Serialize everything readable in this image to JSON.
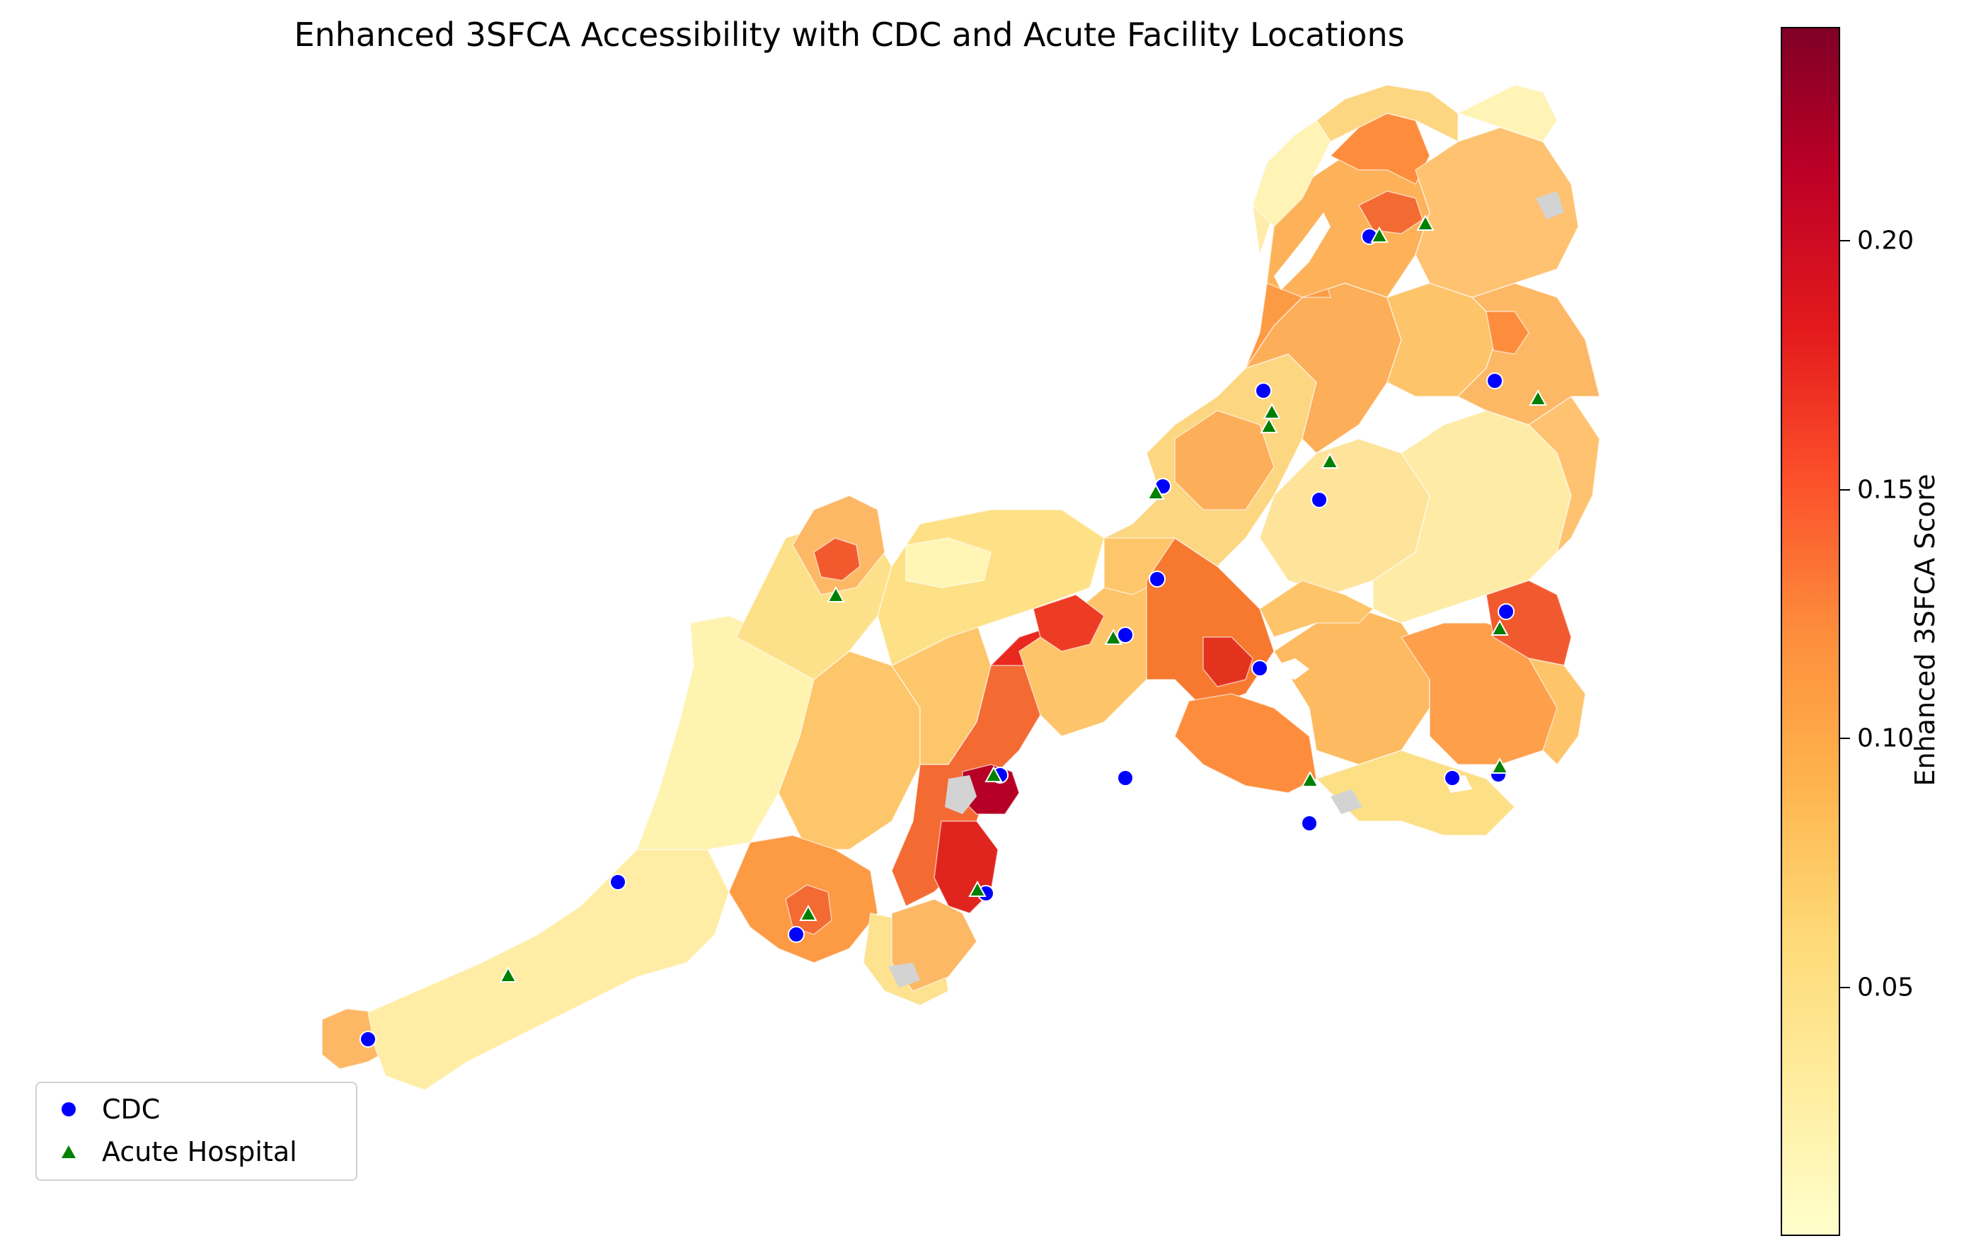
{
  "title": "Enhanced 3SFCA Accessibility with CDC and Acute Facility Locations",
  "legend": {
    "items": [
      {
        "label": "CDC",
        "marker": "blue-circle-icon",
        "color": "#0000ff"
      },
      {
        "label": "Acute Hospital",
        "marker": "green-triangle-icon",
        "color": "#008000"
      }
    ]
  },
  "colorbar": {
    "label": "Enhanced 3SFCA Score",
    "colormap": "YlOrRd",
    "range": [
      0.0,
      0.243
    ],
    "ticks": [
      "0.05",
      "0.10",
      "0.15",
      "0.20"
    ],
    "tick_values": [
      0.05,
      0.1,
      0.15,
      0.2
    ]
  },
  "colors": {
    "cdc": "#0000ff",
    "acute": "#008000",
    "no_data": "#d3d3d3"
  }
}
